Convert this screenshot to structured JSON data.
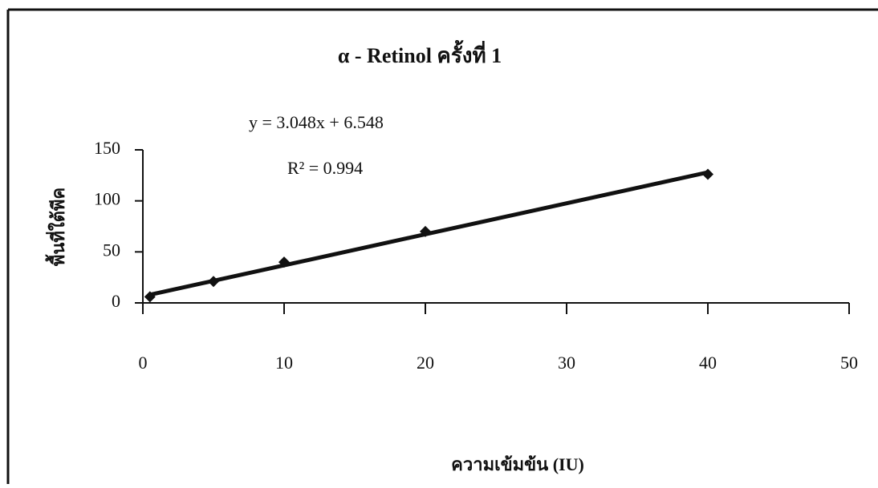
{
  "chart_data": {
    "type": "scatter",
    "title": "α - Retinol ครั้งที่ 1",
    "x_label": "ความเข้มข้น (IU)",
    "y_label": "พื้นที่ใต้พีค",
    "annotations": [
      "y = 3.048x + 6.548",
      "R² = 0.994"
    ],
    "series": [
      {
        "color": "#111111",
        "x": [
          0.5,
          5,
          10,
          20,
          40
        ],
        "values": [
          6,
          21,
          40,
          70,
          126
        ]
      }
    ],
    "trendline": {
      "color": "#111111",
      "x": [
        0.5,
        40
      ],
      "values": [
        8,
        128
      ]
    },
    "xlim": [
      0,
      50
    ],
    "xticks": [
      0,
      10,
      20,
      30,
      40,
      50
    ],
    "ylim": [
      0,
      150
    ],
    "yticks": [
      0,
      50,
      100,
      150
    ],
    "grid": false
  }
}
